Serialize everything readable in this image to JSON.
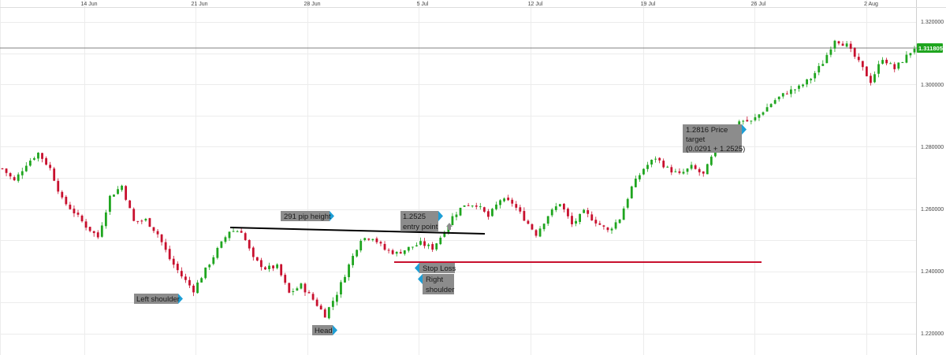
{
  "chart_data": {
    "type": "candlestick",
    "instrument_price_current": "1.311805",
    "y_axis": {
      "range": [
        1.2175,
        1.3275
      ],
      "ticks": [
        "1.320000",
        "1.300000",
        "1.280000",
        "1.260000",
        "1.240000",
        "1.220000"
      ]
    },
    "x_axis": {
      "ticks": [
        "14 Jun",
        "21 Jun",
        "28 Jun",
        "5 Jul",
        "12 Jul",
        "19 Jul",
        "26 Jul",
        "2 Aug"
      ]
    },
    "grid": true,
    "colors": {
      "up": "#1fa51f",
      "down": "#c8102e",
      "neckline": "#000000",
      "stop": "#c8102e",
      "label_bg": "#8c8c8c",
      "label_arrow": "#1e9fd6",
      "price_box": "#1fa51f"
    },
    "reference_levels": {
      "current_price": 1.3118,
      "neckline": {
        "from": 1.2543,
        "to": 1.2517
      },
      "stop_loss": 1.2428
    },
    "path": [
      [
        0,
        1.273
      ],
      [
        3,
        1.269
      ],
      [
        6,
        1.2745
      ],
      [
        9,
        1.278
      ],
      [
        12,
        1.273
      ],
      [
        15,
        1.263
      ],
      [
        18,
        1.259
      ],
      [
        21,
        1.2545
      ],
      [
        24,
        1.251
      ],
      [
        27,
        1.264
      ],
      [
        30,
        1.2675
      ],
      [
        33,
        1.256
      ],
      [
        36,
        1.2565
      ],
      [
        39,
        1.252
      ],
      [
        42,
        1.244
      ],
      [
        45,
        1.2385
      ],
      [
        48,
        1.234
      ],
      [
        51,
        1.2405
      ],
      [
        54,
        1.247
      ],
      [
        57,
        1.253
      ],
      [
        60,
        1.253
      ],
      [
        63,
        1.244
      ],
      [
        66,
        1.241
      ],
      [
        69,
        1.2415
      ],
      [
        72,
        1.233
      ],
      [
        75,
        1.2355
      ],
      [
        78,
        1.231
      ],
      [
        81,
        1.226
      ],
      [
        84,
        1.233
      ],
      [
        87,
        1.242
      ],
      [
        90,
        1.2505
      ],
      [
        93,
        1.251
      ],
      [
        96,
        1.247
      ],
      [
        99,
        1.2458
      ],
      [
        102,
        1.2475
      ],
      [
        105,
        1.249
      ],
      [
        108,
        1.2475
      ],
      [
        110,
        1.251
      ],
      [
        113,
        1.2575
      ],
      [
        116,
        1.2615
      ],
      [
        119,
        1.2615
      ],
      [
        122,
        1.2575
      ],
      [
        125,
        1.263
      ],
      [
        128,
        1.262
      ],
      [
        131,
        1.257
      ],
      [
        134,
        1.252
      ],
      [
        137,
        1.258
      ],
      [
        140,
        1.262
      ],
      [
        143,
        1.255
      ],
      [
        146,
        1.259
      ],
      [
        149,
        1.256
      ],
      [
        152,
        1.253
      ],
      [
        155,
        1.257
      ],
      [
        158,
        1.267
      ],
      [
        161,
        1.273
      ],
      [
        164,
        1.2765
      ],
      [
        167,
        1.273
      ],
      [
        170,
        1.271
      ],
      [
        173,
        1.2735
      ],
      [
        176,
        1.271
      ],
      [
        179,
        1.279
      ],
      [
        182,
        1.283
      ],
      [
        185,
        1.2885
      ],
      [
        188,
        1.288
      ],
      [
        191,
        1.2915
      ],
      [
        194,
        1.295
      ],
      [
        197,
        1.2975
      ],
      [
        200,
        1.299
      ],
      [
        203,
        1.302
      ],
      [
        206,
        1.307
      ],
      [
        209,
        1.3145
      ],
      [
        212,
        1.3125
      ],
      [
        215,
        1.307
      ],
      [
        218,
        1.301
      ],
      [
        221,
        1.3085
      ],
      [
        224,
        1.305
      ],
      [
        227,
        1.309
      ],
      [
        229,
        1.3118
      ]
    ]
  },
  "annotations": {
    "left_shoulder": "Left shoulder",
    "head": "Head",
    "right_shoulder_1": "Right",
    "right_shoulder_2": "shoulder",
    "pip_height": "291 pip height",
    "entry_1": "1.2525",
    "entry_2": "entry point",
    "stop_loss": "Stop Loss",
    "target_1": "1.2816 Price",
    "target_2": "target",
    "target_3": "(0.0291 + 1.2525)"
  }
}
